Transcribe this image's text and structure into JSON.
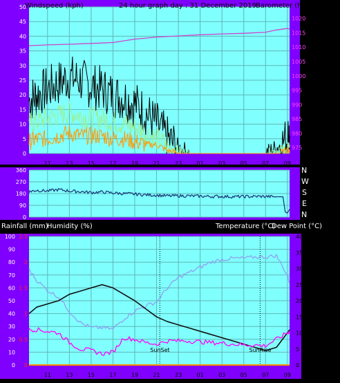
{
  "header": {
    "left": "Windspeed (kph)",
    "center": "24 hour graph day : 31 December 2019",
    "right": "Barometer (hpa)"
  },
  "labels": {
    "direction_letters": [
      "N",
      "W",
      "S",
      "E",
      "N"
    ],
    "rain": "Rainfall (mm)",
    "humidity": "Humidity (%)",
    "temp": "Temperature (°C)",
    "dew": "Dew Point (°C)",
    "sunset": "SunSet",
    "sunrise": "SunRise"
  },
  "colors": {
    "frame": "#8000ff",
    "plot_bg": "#80ffff",
    "grid": "#5fb5b5",
    "wind_gust": "#000000",
    "wind_avg": "#98f098",
    "wind_min": "#ff9900",
    "pressure": "#cc44cc",
    "direction": "#1b3e7a",
    "humidity": "#8fa0f0",
    "temperature": "#111111",
    "dewpoint": "#ff00ff",
    "rain": "#ff8800"
  },
  "chart_data": [
    {
      "type": "line",
      "x_ticks": [
        "11",
        "13",
        "15",
        "17",
        "19",
        "21",
        "23",
        "01",
        "03",
        "05",
        "07",
        "09"
      ],
      "y_left_label": "Windspeed (kph)",
      "y_left_ticks": [
        0,
        5,
        10,
        15,
        20,
        25,
        30,
        35,
        40,
        45,
        50
      ],
      "y_right_label": "Barometer (hpa)",
      "y_right_ticks": [
        975,
        980,
        985,
        990,
        995,
        1000,
        1005,
        1010,
        1015,
        1020
      ],
      "y_right_lim": [
        973,
        1024
      ],
      "series": [
        {
          "name": "Wind gust",
          "axis": "left",
          "x": [
            9.3,
            10,
            11,
            12,
            13,
            14,
            15,
            16,
            17,
            18,
            19,
            20,
            21,
            22,
            23,
            24,
            25,
            26,
            27,
            28,
            29,
            30,
            31,
            32,
            33,
            33.2
          ],
          "y": [
            18,
            20,
            22,
            24,
            26,
            25,
            23,
            22,
            20,
            19,
            17,
            14,
            10,
            5,
            2,
            0,
            0,
            0,
            0,
            0,
            0,
            0,
            0,
            2,
            5,
            6
          ]
        },
        {
          "name": "Wind average",
          "axis": "left",
          "x": [
            9.3,
            10,
            11,
            12,
            13,
            14,
            15,
            16,
            17,
            18,
            19,
            20,
            21,
            22,
            23,
            24,
            25,
            26,
            27,
            28,
            29,
            30,
            31,
            32,
            33,
            33.2
          ],
          "y": [
            10,
            11,
            12,
            13,
            14,
            13,
            12,
            12,
            11,
            10,
            9,
            7,
            5,
            3,
            1,
            0,
            0,
            0,
            0,
            0,
            0,
            0,
            0,
            1,
            2,
            3
          ]
        },
        {
          "name": "Wind minimum",
          "axis": "left",
          "x": [
            9.3,
            10,
            11,
            12,
            13,
            14,
            15,
            16,
            17,
            18,
            19,
            20,
            21,
            22,
            23,
            24,
            25,
            26,
            27,
            28,
            29,
            30,
            31,
            32,
            33,
            33.2
          ],
          "y": [
            4,
            5,
            5,
            6,
            7,
            6,
            6,
            6,
            5,
            5,
            4,
            3,
            3,
            1,
            0,
            0,
            0,
            0,
            0,
            0,
            0,
            0,
            0,
            0,
            1,
            1
          ]
        },
        {
          "name": "Barometer",
          "axis": "right",
          "x": [
            9.3,
            11,
            13,
            15,
            17,
            19,
            21,
            23,
            25,
            27,
            29,
            31,
            32,
            33,
            33.2
          ],
          "y": [
            1010.5,
            1010.8,
            1011.0,
            1011.3,
            1011.6,
            1012.8,
            1013.5,
            1013.9,
            1014.3,
            1014.6,
            1014.8,
            1015.2,
            1016.0,
            1016.5,
            1016.3
          ]
        }
      ]
    },
    {
      "type": "line",
      "y_ticks": [
        360,
        270,
        180,
        90,
        0
      ],
      "y_lim": [
        0,
        360
      ],
      "series": [
        {
          "name": "Wind direction",
          "x": [
            9.3,
            10,
            11,
            12,
            13,
            14,
            15,
            16,
            17,
            18,
            19,
            20,
            21,
            22,
            23,
            24,
            25,
            26,
            27,
            28,
            29,
            30,
            31,
            32,
            32.6,
            32.8,
            33.0,
            33.2
          ],
          "y": [
            195,
            205,
            200,
            210,
            200,
            195,
            188,
            192,
            185,
            180,
            176,
            170,
            168,
            162,
            163,
            162,
            160,
            158,
            158,
            156,
            157,
            158,
            158,
            156,
            155,
            40,
            30,
            60
          ]
        }
      ]
    },
    {
      "type": "line",
      "y_left_ticks": [
        0,
        10,
        20,
        30,
        40,
        50,
        60,
        70,
        80,
        90,
        100
      ],
      "y_left_label": "Humidity (%)",
      "y_rain_ticks": [
        0,
        0.5,
        1,
        1.5,
        2,
        2.5
      ],
      "y_rain_label": "Rainfall (mm)",
      "y_right_ticks": [
        0,
        5,
        10,
        15,
        20,
        25,
        30,
        35,
        40
      ],
      "y_right_label": "Temperature (°C)",
      "sunset_x": 21.3,
      "sunrise_x": 30.5,
      "series": [
        {
          "name": "Humidity",
          "axis": "left",
          "x": [
            9.3,
            10,
            11,
            12,
            13,
            14,
            15,
            16,
            17,
            18,
            19,
            20,
            21,
            22,
            23,
            24,
            25,
            26,
            27,
            28,
            29,
            30,
            31,
            32,
            33,
            33.2
          ],
          "y": [
            74,
            66,
            58,
            53,
            42,
            33,
            29,
            29,
            28,
            36,
            42,
            46,
            49,
            60,
            68,
            72,
            76,
            80,
            82,
            83,
            83,
            84,
            84,
            85,
            70,
            64
          ]
        },
        {
          "name": "Temperature",
          "axis": "right",
          "x": [
            9.3,
            10,
            11,
            12,
            13,
            14,
            15,
            16,
            17,
            18,
            19,
            20,
            21,
            22,
            23,
            24,
            25,
            26,
            27,
            28,
            29,
            30,
            31,
            32,
            33,
            33.2
          ],
          "y": [
            16,
            18,
            19,
            20,
            22,
            23,
            24,
            25,
            24,
            22,
            20,
            17.5,
            15,
            13.5,
            12.5,
            11.5,
            10.5,
            9.5,
            8.5,
            7.5,
            6.5,
            5.5,
            4.5,
            5.5,
            10,
            11
          ]
        },
        {
          "name": "Dew point",
          "axis": "right",
          "x": [
            9.3,
            10,
            11,
            12,
            13,
            14,
            15,
            16,
            17,
            18,
            19,
            20,
            21,
            22,
            23,
            24,
            25,
            26,
            27,
            28,
            29,
            30,
            31,
            32,
            33,
            33.2
          ],
          "y": [
            11,
            11,
            10.5,
            10,
            7,
            5,
            4.5,
            3.5,
            4,
            8.5,
            8,
            7,
            6.5,
            7.5,
            7.5,
            7.5,
            7.2,
            7,
            6.8,
            6.5,
            6.3,
            6.2,
            6,
            8,
            10,
            10.5
          ]
        },
        {
          "name": "Rainfall",
          "axis": "rain",
          "x": [
            9.3,
            33.2
          ],
          "y": [
            0,
            0
          ]
        }
      ]
    }
  ]
}
